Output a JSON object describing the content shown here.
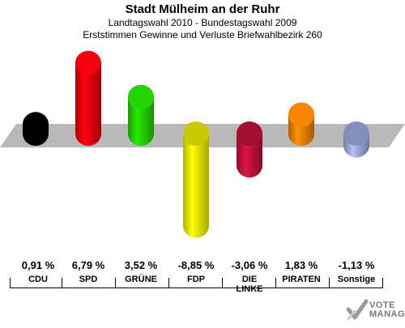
{
  "header": {
    "title": "Stadt Mülheim an der Ruhr",
    "subtitle1": "Landtagswahl 2010 - Bundestagswahl 2009",
    "subtitle2": "Erststimmen Gewinne und Verluste Briefwahlbezirk 260"
  },
  "chart_data": {
    "type": "bar",
    "categories": [
      "CDU",
      "SPD",
      "GRÜNE",
      "FDP",
      "DIE LINKE",
      "PIRATEN",
      "Sonstige"
    ],
    "values": [
      0.91,
      6.79,
      3.52,
      -8.85,
      -3.06,
      1.83,
      -1.13
    ],
    "value_labels": [
      "0,91 %",
      "6,79 %",
      "3,52 %",
      "-8,85 %",
      "-3,06 %",
      "1,83 %",
      "-1,13 %"
    ],
    "colors": [
      "#000000",
      "#e8000d",
      "#22cc00",
      "#eeee00",
      "#c0103a",
      "#f08000",
      "#9aa8d8"
    ],
    "ylim": [
      -9,
      7
    ],
    "grid": false,
    "legend": "none"
  },
  "logo": {
    "line1": "VOTE",
    "line2": "MANAGER"
  }
}
